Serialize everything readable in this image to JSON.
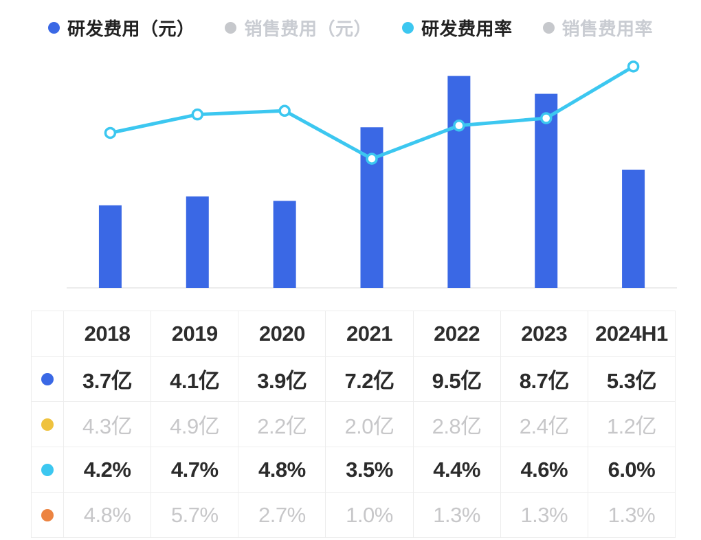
{
  "colors": {
    "blue": "#3A68E5",
    "cyan": "#3CC7F0",
    "yellow": "#EFC23E",
    "orange": "#EC8442",
    "gray_dot": "#C6C8CC",
    "axis": "#ECECEC"
  },
  "legend": {
    "items": [
      {
        "id": "rd-expense",
        "label": "研发费用（元）",
        "dot_color": "#3A68E5",
        "active": true
      },
      {
        "id": "sales-expense",
        "label": "销售费用（元）",
        "dot_color": "#C6C8CC",
        "active": false
      },
      {
        "id": "rd-expense-ratio",
        "label": "研发费用率",
        "dot_color": "#3CC7F0",
        "active": true
      },
      {
        "id": "sales-expense-ratio",
        "label": "销售费用率",
        "dot_color": "#C6C8CC",
        "active": false
      }
    ]
  },
  "chart_data": {
    "type": "bar+line combo",
    "categories": [
      "2018",
      "2019",
      "2020",
      "2021",
      "2022",
      "2023",
      "2024H1"
    ],
    "series": [
      {
        "name": "研发费用(亿元)",
        "type": "bar",
        "visible": true,
        "color": "#3A68E5",
        "ylim": [
          0,
          10.75
        ],
        "values": [
          3.7,
          4.1,
          3.9,
          7.2,
          9.5,
          8.7,
          5.3
        ]
      },
      {
        "name": "销售费用(亿元)",
        "type": "bar",
        "visible": false,
        "color": "#EFC23E",
        "ylim": [
          0,
          10.75
        ],
        "values": [
          4.3,
          4.9,
          2.2,
          2.0,
          2.8,
          2.4,
          1.2
        ]
      },
      {
        "name": "研发费用率(%)",
        "type": "line",
        "visible": true,
        "color": "#3CC7F0",
        "ylim": [
          0,
          6.5
        ],
        "values": [
          4.2,
          4.7,
          4.8,
          3.5,
          4.4,
          4.6,
          6.0
        ]
      },
      {
        "name": "销售费用率(%)",
        "type": "line",
        "visible": false,
        "color": "#EC8442",
        "ylim": [
          0,
          6.5
        ],
        "values": [
          4.8,
          5.7,
          2.7,
          1.0,
          1.3,
          1.3,
          1.3
        ]
      }
    ],
    "legend_position": "top",
    "grid": false,
    "x_axis_labels_shown": false
  },
  "table": {
    "header": [
      "",
      "2018",
      "2019",
      "2020",
      "2021",
      "2022",
      "2023",
      "2024H1"
    ],
    "rows": [
      {
        "series": "rd-expense",
        "dot_color": "#3A68E5",
        "muted": false,
        "cells": [
          "3.7亿",
          "4.1亿",
          "3.9亿",
          "7.2亿",
          "9.5亿",
          "8.7亿",
          "5.3亿"
        ]
      },
      {
        "series": "sales-expense",
        "dot_color": "#EFC23E",
        "muted": true,
        "cells": [
          "4.3亿",
          "4.9亿",
          "2.2亿",
          "2.0亿",
          "2.8亿",
          "2.4亿",
          "1.2亿"
        ]
      },
      {
        "series": "rd-expense-ratio",
        "dot_color": "#3CC7F0",
        "muted": false,
        "cells": [
          "4.2%",
          "4.7%",
          "4.8%",
          "3.5%",
          "4.4%",
          "4.6%",
          "6.0%"
        ]
      },
      {
        "series": "sales-expense-ratio",
        "dot_color": "#EC8442",
        "muted": true,
        "cells": [
          "4.8%",
          "5.7%",
          "2.7%",
          "1.0%",
          "1.3%",
          "1.3%",
          "1.3%"
        ]
      }
    ]
  }
}
